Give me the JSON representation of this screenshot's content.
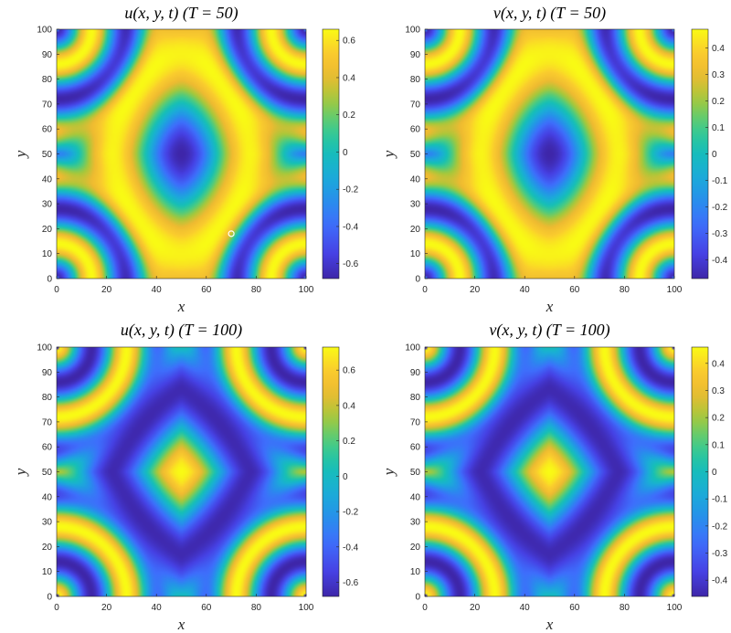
{
  "chart_data": [
    {
      "type": "heatmap",
      "title": "u(x, y, t) (T = 50)",
      "xlabel": "x",
      "ylabel": "y",
      "xlim": [
        0,
        100
      ],
      "ylim": [
        0,
        100
      ],
      "x_ticks": [
        "0",
        "20",
        "40",
        "60",
        "80",
        "100"
      ],
      "y_ticks": [
        "0",
        "10",
        "20",
        "30",
        "40",
        "50",
        "60",
        "70",
        "80",
        "90",
        "100"
      ],
      "colorbar": {
        "range": [
          -0.68,
          0.66
        ],
        "ticks": [
          "-0.6",
          "-0.4",
          "-0.2",
          "0",
          "0.2",
          "0.4",
          "0.6"
        ],
        "colormap": "parula"
      },
      "pattern": {
        "sign": 1,
        "center_shape": "tall-ellipse",
        "marker": {
          "x": 70,
          "y": 18
        }
      }
    },
    {
      "type": "heatmap",
      "title": "v(x, y, t) (T = 50)",
      "xlabel": "x",
      "ylabel": "y",
      "xlim": [
        0,
        100
      ],
      "ylim": [
        0,
        100
      ],
      "x_ticks": [
        "0",
        "20",
        "40",
        "60",
        "80",
        "100"
      ],
      "y_ticks": [
        "0",
        "10",
        "20",
        "30",
        "40",
        "50",
        "60",
        "70",
        "80",
        "90",
        "100"
      ],
      "colorbar": {
        "range": [
          -0.47,
          0.47
        ],
        "ticks": [
          "-0.4",
          "-0.3",
          "-0.2",
          "-0.1",
          "0",
          "0.1",
          "0.2",
          "0.3",
          "0.4"
        ],
        "colormap": "parula"
      },
      "pattern": {
        "sign": 1,
        "center_shape": "tall-ellipse"
      }
    },
    {
      "type": "heatmap",
      "title": "u(x, y, t) (T = 100)",
      "xlabel": "x",
      "ylabel": "y",
      "xlim": [
        0,
        100
      ],
      "ylim": [
        0,
        100
      ],
      "x_ticks": [
        "0",
        "20",
        "40",
        "60",
        "80",
        "100"
      ],
      "y_ticks": [
        "0",
        "10",
        "20",
        "30",
        "40",
        "50",
        "60",
        "70",
        "80",
        "90",
        "100"
      ],
      "colorbar": {
        "range": [
          -0.68,
          0.73
        ],
        "ticks": [
          "-0.6",
          "-0.4",
          "-0.2",
          "0",
          "0.2",
          "0.4",
          "0.6"
        ],
        "colormap": "parula"
      },
      "pattern": {
        "sign": -1,
        "center_shape": "diamond"
      }
    },
    {
      "type": "heatmap",
      "title": "v(x, y, t) (T = 100)",
      "xlabel": "x",
      "ylabel": "y",
      "xlim": [
        0,
        100
      ],
      "ylim": [
        0,
        100
      ],
      "x_ticks": [
        "0",
        "20",
        "40",
        "60",
        "80",
        "100"
      ],
      "y_ticks": [
        "0",
        "10",
        "20",
        "30",
        "40",
        "50",
        "60",
        "70",
        "80",
        "90",
        "100"
      ],
      "colorbar": {
        "range": [
          -0.46,
          0.46
        ],
        "ticks": [
          "-0.4",
          "-0.3",
          "-0.2",
          "-0.1",
          "0",
          "0.1",
          "0.2",
          "0.3",
          "0.4"
        ],
        "colormap": "parula"
      },
      "pattern": {
        "sign": -1,
        "center_shape": "diamond"
      }
    }
  ]
}
